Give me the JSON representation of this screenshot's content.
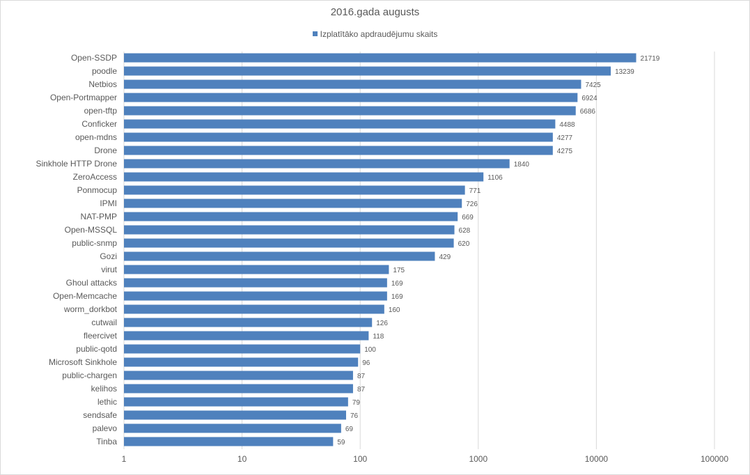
{
  "chart_data": {
    "type": "bar",
    "orientation": "horizontal",
    "title": "2016.gada augusts",
    "xscale": "log",
    "xlim": [
      1,
      100000
    ],
    "xticks": [
      1,
      10,
      100,
      1000,
      10000,
      100000
    ],
    "xtick_labels": [
      "1",
      "10",
      "100",
      "1000",
      "10000",
      "100000"
    ],
    "grid": "vertical",
    "legend_position": "top",
    "series": [
      {
        "name": "Izplatītāko apdraudējumu skaits",
        "color": "#4f81bd",
        "values": [
          21719,
          13239,
          7425,
          6924,
          6686,
          4488,
          4277,
          4275,
          1840,
          1106,
          771,
          726,
          669,
          628,
          620,
          429,
          175,
          169,
          169,
          160,
          126,
          118,
          100,
          96,
          87,
          87,
          79,
          76,
          69,
          59
        ]
      }
    ],
    "categories": [
      "Open-SSDP",
      "poodle",
      "Netbios",
      "Open-Portmapper",
      "open-tftp",
      "Conficker",
      "open-mdns",
      "Drone",
      "Sinkhole HTTP Drone",
      "ZeroAccess",
      "Ponmocup",
      "IPMI",
      "NAT-PMP",
      "Open-MSSQL",
      "public-snmp",
      "Gozi",
      "virut",
      "Ghoul attacks",
      "Open-Memcache",
      "worm_dorkbot",
      "cutwail",
      "fleercivet",
      "public-qotd",
      "Microsoft Sinkhole",
      "public-chargen",
      "kelihos",
      "lethic",
      "sendsafe",
      "palevo",
      "Tinba"
    ]
  }
}
